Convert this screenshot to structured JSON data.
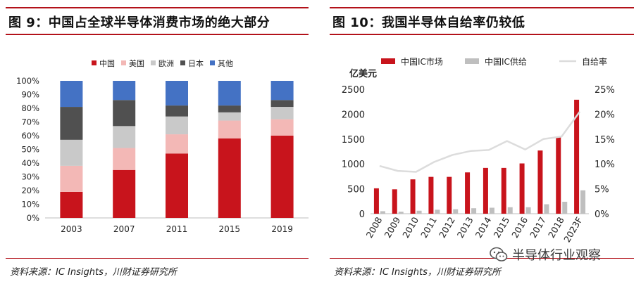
{
  "left": {
    "title": "图 9：中国占全球半导体消费市场的绝大部分",
    "source": "资料来源：IC Insights，川财证券研究所",
    "chart_data": {
      "type": "bar",
      "stacked": true,
      "percent": true,
      "categories": [
        "2003",
        "2007",
        "2011",
        "2015",
        "2019"
      ],
      "series": [
        {
          "name": "中国",
          "color": "#c8141c",
          "values": [
            19,
            35,
            47,
            58,
            60
          ]
        },
        {
          "name": "美国",
          "color": "#f3b8b6",
          "values": [
            19,
            16,
            14,
            13,
            12
          ]
        },
        {
          "name": "欧洲",
          "color": "#c9c9c9",
          "values": [
            19,
            16,
            13,
            6,
            9
          ]
        },
        {
          "name": "日本",
          "color": "#505050",
          "values": [
            24,
            19,
            8,
            5,
            5
          ]
        },
        {
          "name": "其他",
          "color": "#4472c4",
          "values": [
            19,
            14,
            18,
            18,
            14
          ]
        }
      ],
      "yticks": [
        "0%",
        "10%",
        "20%",
        "30%",
        "40%",
        "50%",
        "60%",
        "70%",
        "80%",
        "90%",
        "100%"
      ],
      "ylim": [
        0,
        100
      ],
      "legend_position": "top"
    }
  },
  "right": {
    "title": "图 10：我国半导体自给率仍较低",
    "source": "资料来源：IC Insights，川财证券研究所",
    "chart_data": {
      "type": "bar+line",
      "ylabel_left": "亿美元",
      "categories": [
        "2008",
        "2009",
        "2010",
        "2011",
        "2012",
        "2013",
        "2014",
        "2015",
        "2016",
        "2017",
        "2018",
        "2023F"
      ],
      "series": [
        {
          "name": "中国IC市场",
          "type": "bar",
          "color": "#c8141c",
          "values": [
            510,
            490,
            690,
            740,
            740,
            830,
            920,
            920,
            1010,
            1270,
            1540,
            2290
          ]
        },
        {
          "name": "中国IC供给",
          "type": "bar",
          "color": "#bfbfbf",
          "values": [
            50,
            40,
            60,
            80,
            90,
            110,
            120,
            130,
            130,
            190,
            240,
            470
          ]
        },
        {
          "name": "自给率",
          "type": "line",
          "color": "#dcdcdc",
          "axis": "right",
          "values": [
            9.6,
            8.6,
            8.4,
            10.4,
            11.8,
            12.6,
            12.8,
            14.6,
            12.9,
            15.0,
            15.5,
            20.5
          ]
        }
      ],
      "yticks_left": [
        "0",
        "500",
        "1000",
        "1500",
        "2000",
        "2500"
      ],
      "ylim_left": [
        0,
        2500
      ],
      "yticks_right": [
        "0%",
        "5%",
        "10%",
        "15%",
        "20%",
        "25%"
      ],
      "ylim_right": [
        0,
        25
      ],
      "legend_position": "top"
    }
  },
  "watermark": {
    "text": "半导体行业观察"
  }
}
